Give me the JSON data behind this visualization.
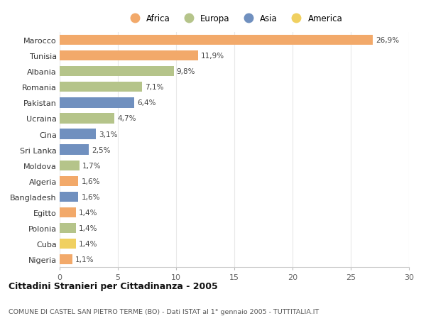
{
  "countries": [
    "Marocco",
    "Tunisia",
    "Albania",
    "Romania",
    "Pakistan",
    "Ucraina",
    "Cina",
    "Sri Lanka",
    "Moldova",
    "Algeria",
    "Bangladesh",
    "Egitto",
    "Polonia",
    "Cuba",
    "Nigeria"
  ],
  "values": [
    26.9,
    11.9,
    9.8,
    7.1,
    6.4,
    4.7,
    3.1,
    2.5,
    1.7,
    1.6,
    1.6,
    1.4,
    1.4,
    1.4,
    1.1
  ],
  "labels": [
    "26,9%",
    "11,9%",
    "9,8%",
    "7,1%",
    "6,4%",
    "4,7%",
    "3,1%",
    "2,5%",
    "1,7%",
    "1,6%",
    "1,6%",
    "1,4%",
    "1,4%",
    "1,4%",
    "1,1%"
  ],
  "continents": [
    "Africa",
    "Africa",
    "Europa",
    "Europa",
    "Asia",
    "Europa",
    "Asia",
    "Asia",
    "Europa",
    "Africa",
    "Asia",
    "Africa",
    "Europa",
    "America",
    "Africa"
  ],
  "colors": {
    "Africa": "#F2A96A",
    "Europa": "#B5C48A",
    "Asia": "#7090BF",
    "America": "#F0D060"
  },
  "legend_order": [
    "Africa",
    "Europa",
    "Asia",
    "America"
  ],
  "title": "Cittadini Stranieri per Cittadinanza - 2005",
  "subtitle": "COMUNE DI CASTEL SAN PIETRO TERME (BO) - Dati ISTAT al 1° gennaio 2005 - TUTTITALIA.IT",
  "xlim": [
    0,
    30
  ],
  "xticks": [
    0,
    5,
    10,
    15,
    20,
    25,
    30
  ],
  "bg_color": "#FFFFFF",
  "grid_color": "#E8E8E8"
}
